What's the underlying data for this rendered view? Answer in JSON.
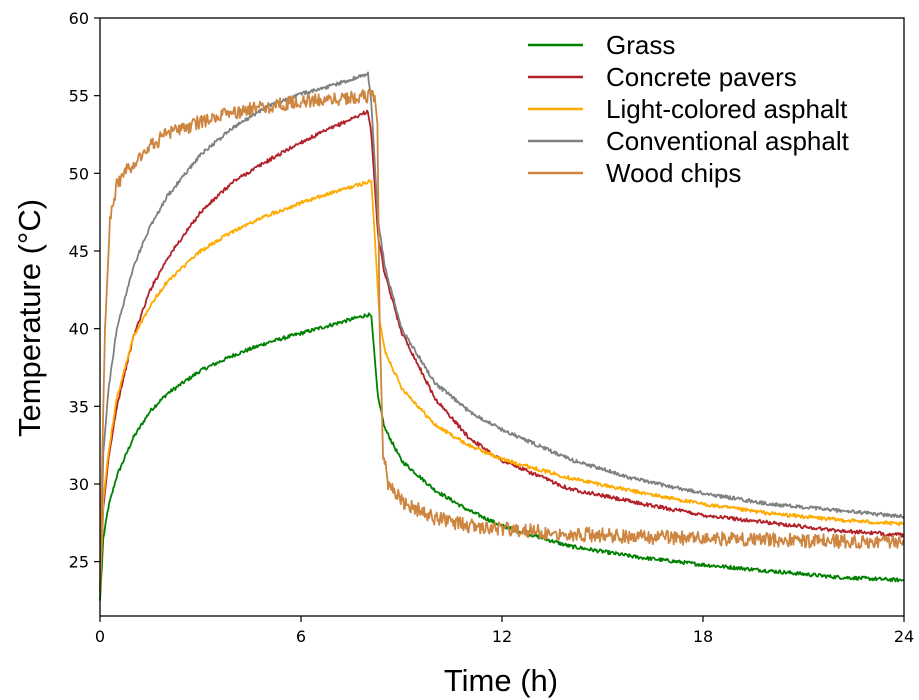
{
  "chart_data": {
    "type": "line",
    "xlabel": "Time (h)",
    "ylabel": "Temperature (°C)",
    "xlim": [
      0,
      24
    ],
    "ylim": [
      21.5,
      60
    ],
    "xticks": [
      0,
      6,
      12,
      18,
      24
    ],
    "yticks": [
      25,
      30,
      35,
      40,
      45,
      50,
      55,
      60
    ],
    "grid": false,
    "legend_position": "top-right",
    "series": [
      {
        "name": "Grass",
        "color": "#008000",
        "x": [
          0,
          0.1,
          0.25,
          0.5,
          1,
          1.5,
          2,
          3,
          4,
          5,
          6,
          7,
          8,
          8.1,
          8.3,
          8.5,
          9,
          10,
          11,
          12,
          14,
          16,
          18,
          20,
          22,
          24
        ],
        "y": [
          22.5,
          26.5,
          28.5,
          30.5,
          33,
          34.7,
          35.8,
          37.3,
          38.3,
          39.1,
          39.7,
          40.3,
          40.9,
          40.8,
          35.5,
          33.6,
          31.5,
          29.6,
          28.3,
          27.3,
          26,
          25.3,
          24.8,
          24.4,
          24,
          23.8
        ]
      },
      {
        "name": "Concrete pavers",
        "color": "#b22028",
        "x": [
          0,
          0.1,
          0.25,
          0.5,
          1,
          1.5,
          2,
          3,
          4,
          5,
          6,
          7,
          8,
          8.1,
          8.3,
          8.5,
          9,
          10,
          11,
          12,
          14,
          16,
          18,
          20,
          22,
          24
        ],
        "y": [
          23,
          28.5,
          31.5,
          35,
          39.5,
          42.5,
          44.5,
          47.5,
          49.5,
          50.8,
          52,
          53,
          54,
          52.5,
          46,
          43.5,
          39.8,
          35.5,
          33,
          31.5,
          29.7,
          28.8,
          28,
          27.5,
          27,
          26.7
        ]
      },
      {
        "name": "Light-colored asphalt",
        "color": "#ffaa00",
        "x": [
          0,
          0.1,
          0.25,
          0.5,
          1,
          1.5,
          2,
          3,
          4,
          5,
          6,
          7,
          8.1,
          8.2,
          8.35,
          8.5,
          9,
          10,
          11,
          12,
          14,
          16,
          18,
          20,
          22,
          24
        ],
        "y": [
          23,
          29,
          32,
          35.5,
          39.5,
          41.5,
          43,
          45,
          46.3,
          47.3,
          48.1,
          48.8,
          49.5,
          46,
          40.5,
          38.6,
          36.2,
          33.8,
          32.5,
          31.6,
          30.4,
          29.5,
          28.7,
          28.1,
          27.7,
          27.4
        ]
      },
      {
        "name": "Conventional asphalt",
        "color": "#808080",
        "x": [
          0,
          0.1,
          0.25,
          0.5,
          1,
          1.5,
          2,
          3,
          4,
          5,
          6,
          7,
          8,
          8.1,
          8.3,
          8.5,
          9,
          10,
          11,
          12,
          14,
          16,
          18,
          20,
          22,
          24
        ],
        "y": [
          23,
          32,
          36,
          40,
          44,
          46.6,
          48.5,
          51.2,
          53,
          54.3,
          55.1,
          55.7,
          56.4,
          54.5,
          47,
          44,
          40,
          36.5,
          34.7,
          33.5,
          31.6,
          30.3,
          29.4,
          28.7,
          28.3,
          27.9
        ]
      },
      {
        "name": "Wood chips",
        "color": "#cd853f",
        "x": [
          0,
          0.05,
          0.15,
          0.3,
          0.5,
          1,
          1.5,
          2,
          3,
          4,
          5,
          6,
          7,
          8.2,
          8.28,
          8.35,
          8.45,
          8.6,
          9,
          10,
          11,
          12,
          14,
          16,
          18,
          20,
          22,
          24
        ],
        "y": [
          23,
          30,
          40,
          47,
          49.3,
          50.7,
          51.8,
          52.5,
          53.3,
          53.9,
          54.3,
          54.6,
          54.8,
          55,
          53.2,
          40,
          32,
          30.1,
          28.9,
          27.8,
          27.3,
          27.1,
          26.8,
          26.6,
          26.5,
          26.4,
          26.3,
          26.3
        ]
      }
    ]
  }
}
